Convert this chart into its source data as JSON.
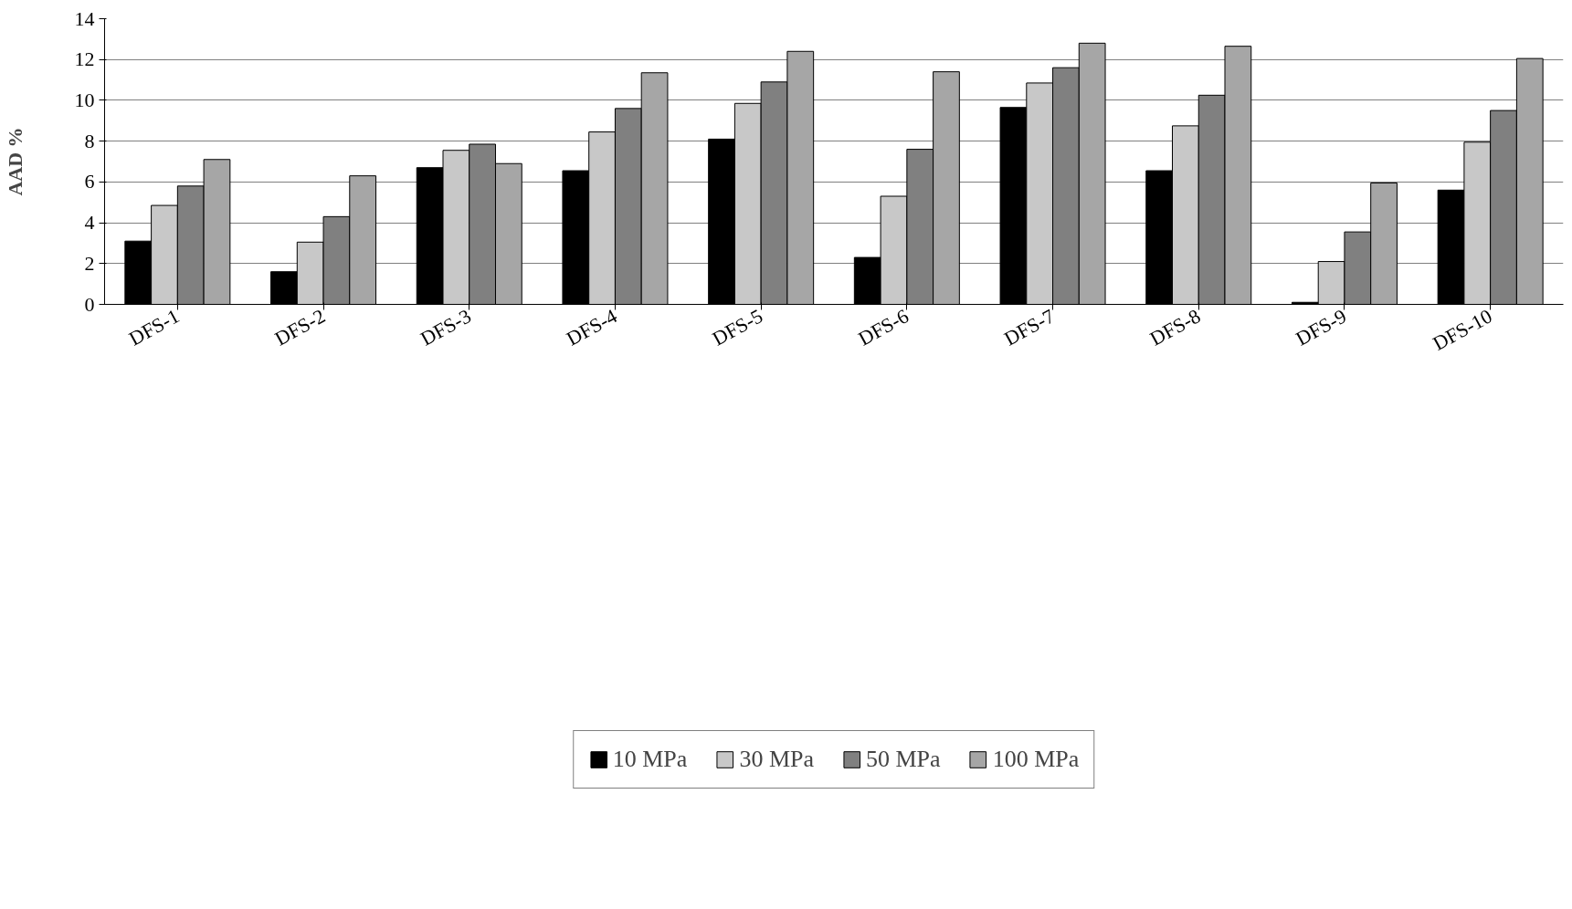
{
  "chart_data": {
    "type": "bar",
    "ylabel": "AAD %",
    "categories": [
      "DFS-1",
      "DFS-2",
      "DFS-3",
      "DFS-4",
      "DFS-5",
      "DFS-6",
      "DFS-7",
      "DFS-8",
      "DFS-9",
      "DFS-10"
    ],
    "series": [
      {
        "name": "10 MPa",
        "color": "#000000",
        "values": [
          3.1,
          1.6,
          6.7,
          6.55,
          8.1,
          2.3,
          9.65,
          6.55,
          0.1,
          5.6
        ]
      },
      {
        "name": "30 MPa",
        "color": "#c8c8c8",
        "values": [
          4.85,
          3.05,
          7.55,
          8.45,
          9.85,
          5.3,
          10.85,
          8.75,
          2.1,
          7.95
        ]
      },
      {
        "name": "50 MPa",
        "color": "#808080",
        "values": [
          5.8,
          4.3,
          7.85,
          9.6,
          10.9,
          7.6,
          11.6,
          10.25,
          3.55,
          9.5
        ]
      },
      {
        "name": "100 MPa",
        "color": "#a6a6a6",
        "values": [
          7.1,
          6.3,
          6.9,
          11.35,
          12.4,
          11.4,
          12.8,
          12.65,
          5.95,
          12.05
        ]
      }
    ],
    "ylim": [
      0,
      14
    ],
    "yticks": [
      0,
      2,
      4,
      6,
      8,
      10,
      12,
      14
    ],
    "grid": "y",
    "legend": "bottom"
  }
}
